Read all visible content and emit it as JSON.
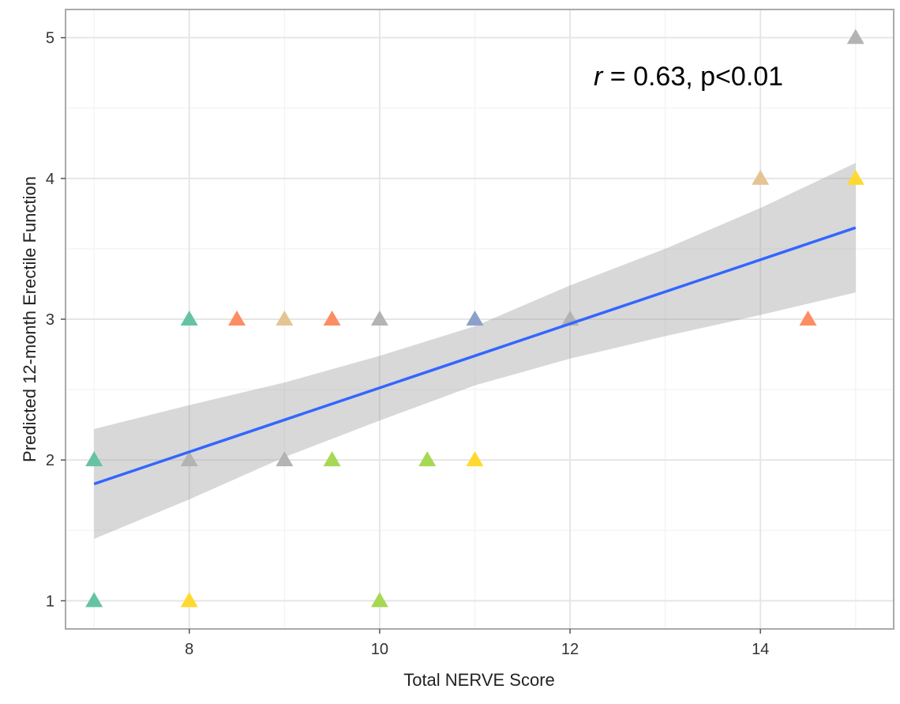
{
  "chart_data": {
    "type": "scatter",
    "title": "",
    "xlabel": "Total NERVE Score",
    "ylabel": "Predicted 12-month Erectile Function",
    "xlim": [
      6.7,
      15.4
    ],
    "ylim": [
      0.8,
      5.2
    ],
    "xticks": [
      8,
      10,
      12,
      14
    ],
    "yticks": [
      1,
      2,
      3,
      4,
      5
    ],
    "grid": true,
    "annotation": {
      "r_symbol": "r",
      "text": " = 0.63, p<0.01"
    },
    "points": [
      {
        "x": 7,
        "y": 2,
        "color": "#66c2a5"
      },
      {
        "x": 7,
        "y": 1,
        "color": "#66c2a5"
      },
      {
        "x": 8,
        "y": 3,
        "color": "#66c2a5"
      },
      {
        "x": 8,
        "y": 2,
        "color": "#b3b3b3"
      },
      {
        "x": 8,
        "y": 1,
        "color": "#ffd92f"
      },
      {
        "x": 8.5,
        "y": 3,
        "color": "#fc8d62"
      },
      {
        "x": 9,
        "y": 3,
        "color": "#e5c494"
      },
      {
        "x": 9,
        "y": 2,
        "color": "#b3b3b3"
      },
      {
        "x": 9.5,
        "y": 3,
        "color": "#fc8d62"
      },
      {
        "x": 9.5,
        "y": 2,
        "color": "#a6d854"
      },
      {
        "x": 10,
        "y": 3,
        "color": "#b3b3b3"
      },
      {
        "x": 10,
        "y": 1,
        "color": "#a6d854"
      },
      {
        "x": 10.5,
        "y": 2,
        "color": "#a6d854"
      },
      {
        "x": 11,
        "y": 3,
        "color": "#8da0cb"
      },
      {
        "x": 11,
        "y": 2,
        "color": "#ffd92f"
      },
      {
        "x": 12,
        "y": 3,
        "color": "#b3b3b3"
      },
      {
        "x": 14,
        "y": 4,
        "color": "#e5c494"
      },
      {
        "x": 14.5,
        "y": 3,
        "color": "#fc8d62"
      },
      {
        "x": 15,
        "y": 5,
        "color": "#b3b3b3"
      },
      {
        "x": 15,
        "y": 4,
        "color": "#ffd92f"
      }
    ],
    "fit": {
      "type": "linear",
      "color": "#3366ff",
      "x": [
        7,
        15
      ],
      "y": [
        1.83,
        3.65
      ],
      "ci_band": {
        "x": [
          7,
          8,
          9,
          10,
          11,
          12,
          13,
          14,
          15
        ],
        "upper": [
          2.22,
          2.39,
          2.55,
          2.74,
          2.95,
          3.24,
          3.5,
          3.79,
          4.11
        ],
        "lower": [
          1.44,
          1.72,
          2.02,
          2.28,
          2.53,
          2.72,
          2.88,
          3.03,
          3.19
        ]
      }
    }
  }
}
